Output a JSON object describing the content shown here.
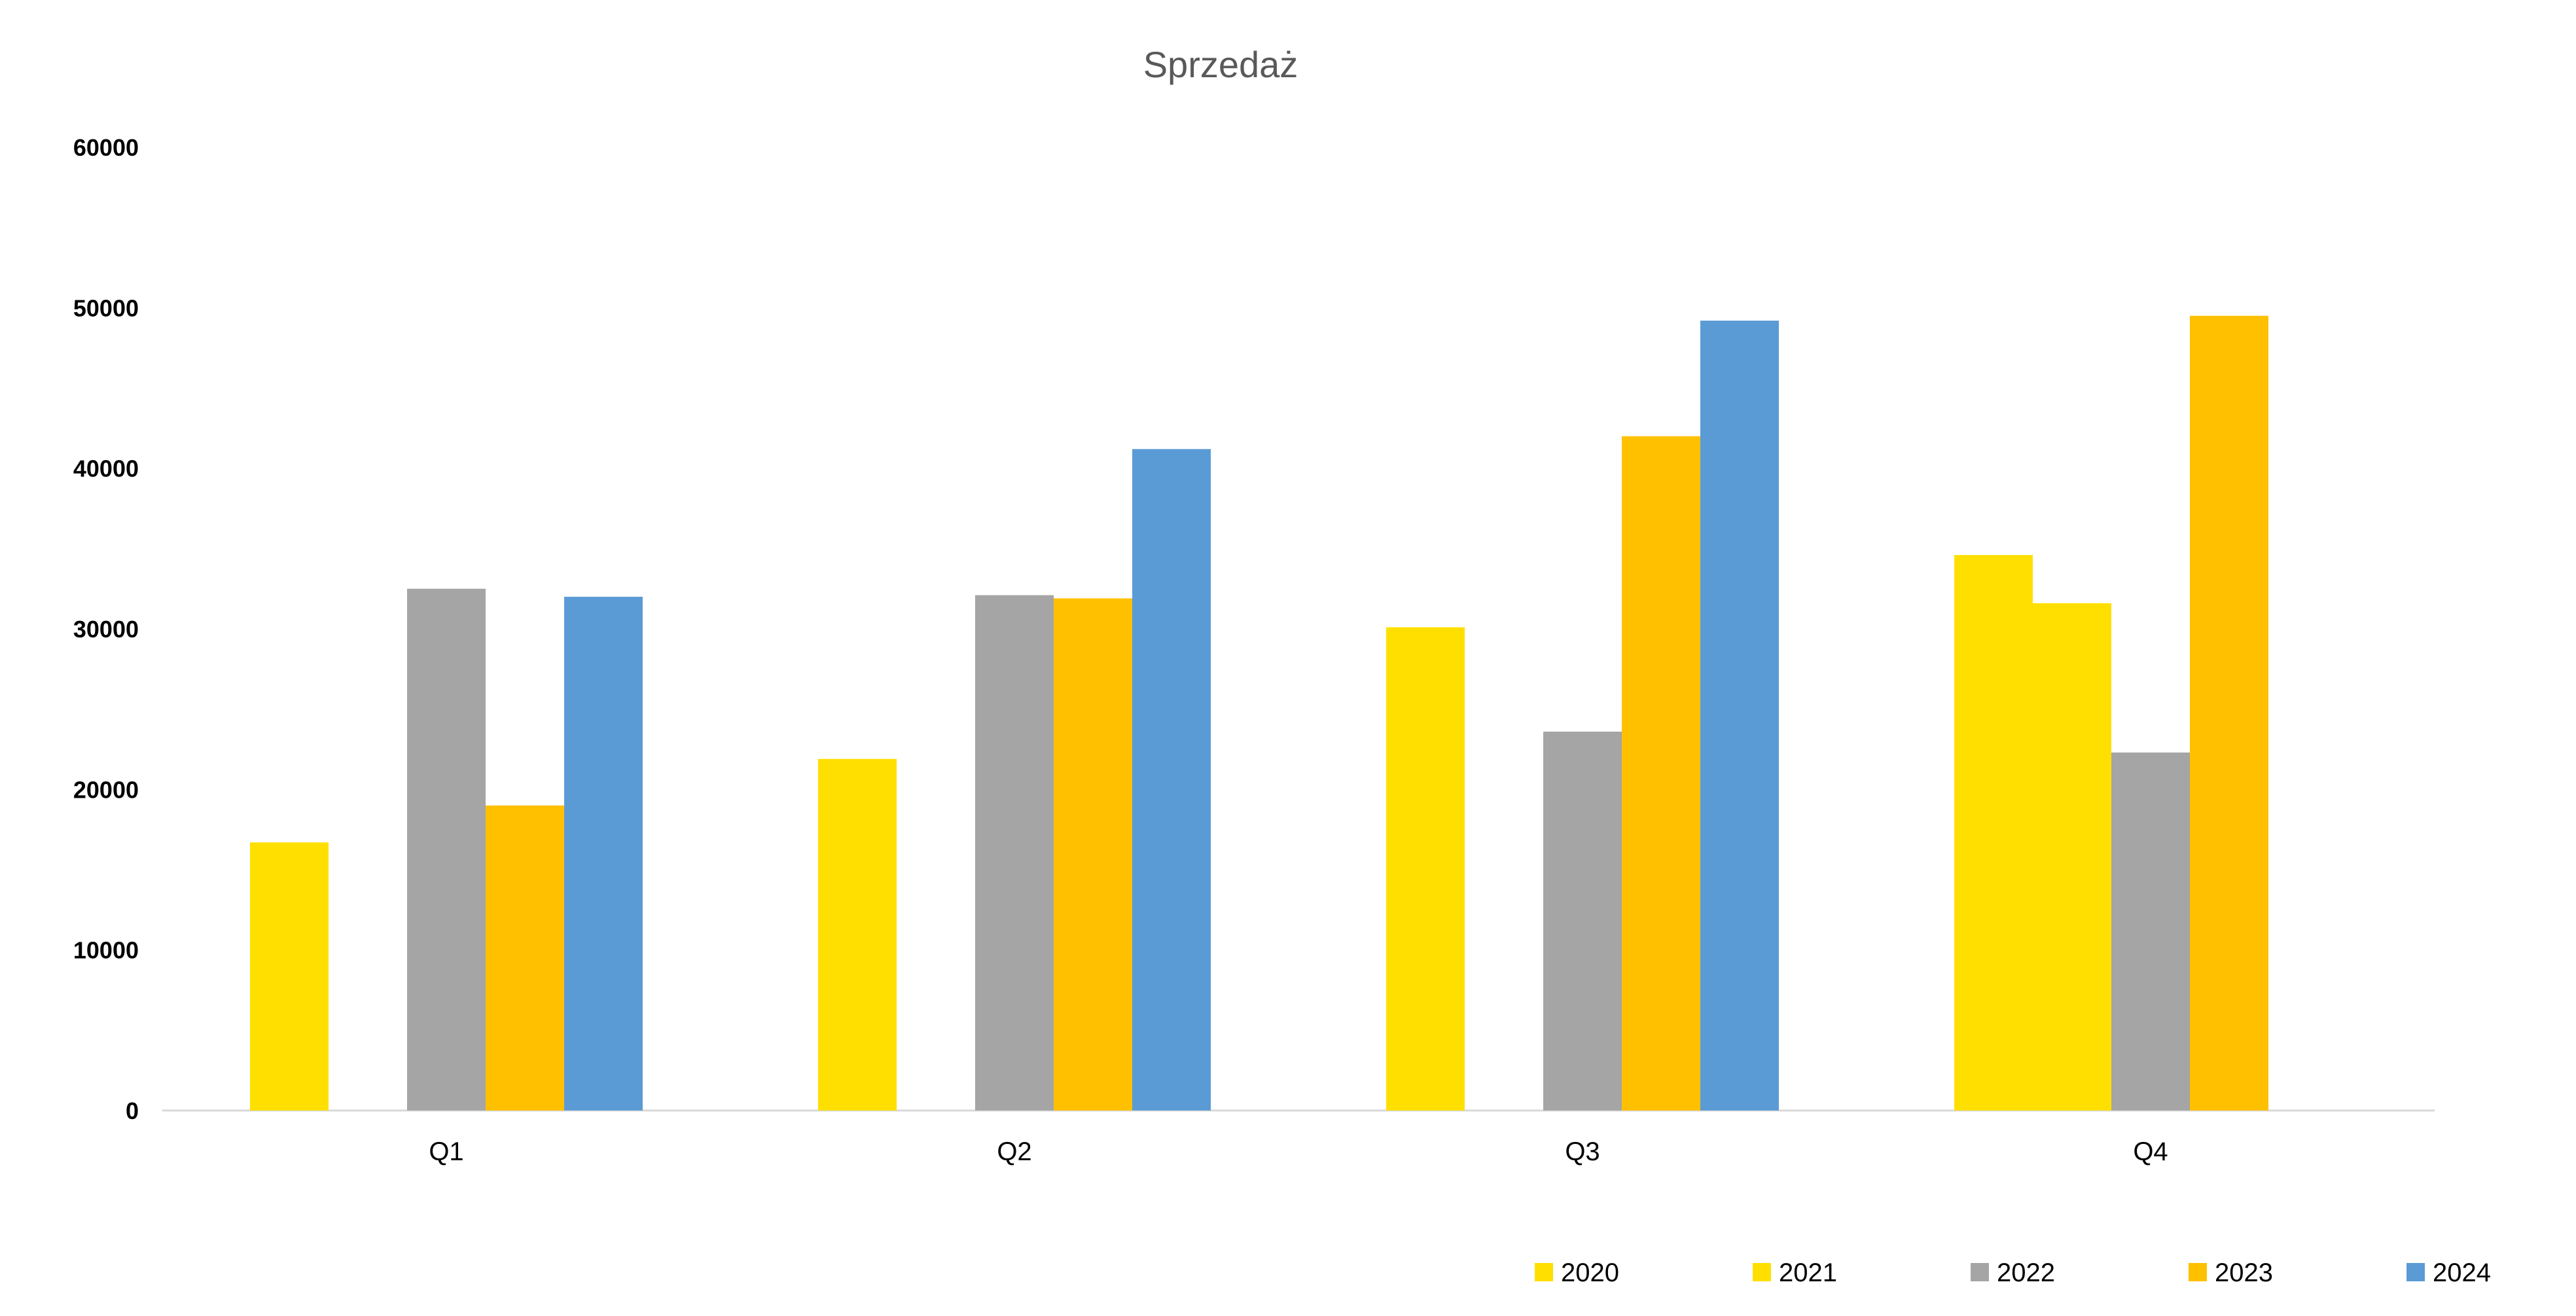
{
  "chart_data": {
    "type": "bar",
    "title": "Sprzedaż",
    "xlabel": "",
    "ylabel": "",
    "categories": [
      "Q1",
      "Q2",
      "Q3",
      "Q4"
    ],
    "ylim": [
      0,
      60000
    ],
    "yticks": [
      0,
      10000,
      20000,
      30000,
      40000,
      50000,
      60000
    ],
    "grid": false,
    "legend_position": "bottom-right",
    "series": [
      {
        "name": "2020",
        "color": "#FFDF00",
        "values": [
          16700,
          21900,
          30100,
          34600
        ]
      },
      {
        "name": "2021",
        "color": "#FFDF00",
        "values": [
          null,
          null,
          null,
          31600
        ]
      },
      {
        "name": "2022",
        "color": "#A5A5A5",
        "values": [
          32500,
          32100,
          23600,
          22300
        ]
      },
      {
        "name": "2023",
        "color": "#FFC000",
        "values": [
          19000,
          31900,
          42000,
          49500
        ]
      },
      {
        "name": "2024",
        "color": "#5B9BD5",
        "values": [
          32000,
          41200,
          49200,
          null
        ]
      }
    ]
  }
}
